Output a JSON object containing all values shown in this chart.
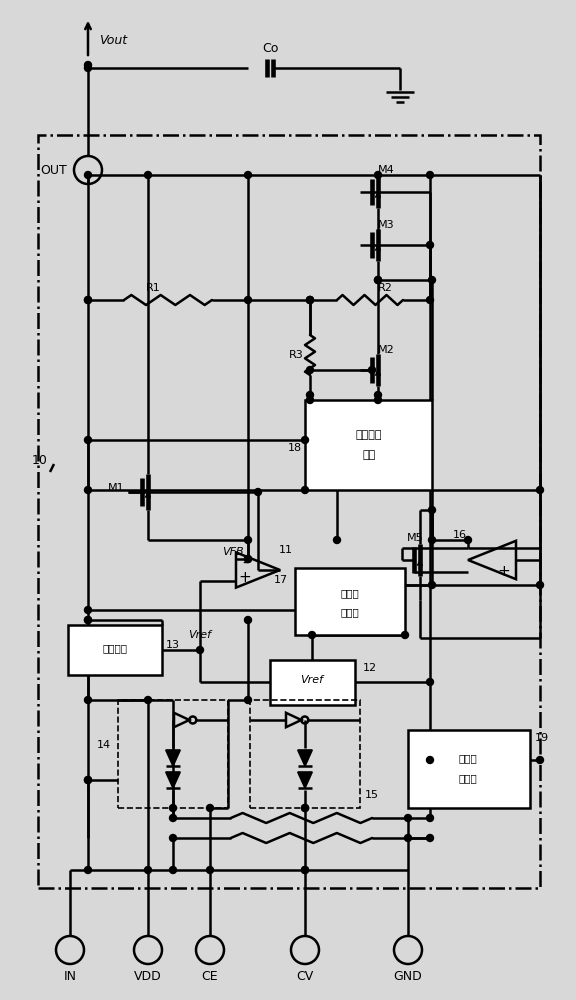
{
  "bg_color": "#d8d8d8",
  "line_color": "#000000",
  "lw": 1.8,
  "tlw": 1.2,
  "fig_width": 5.76,
  "fig_height": 10.0,
  "labels": {
    "OUT": "OUT",
    "IN": "IN",
    "VDD": "VDD",
    "CE": "CE",
    "CV": "CV",
    "GND": "GND",
    "Vout": "Vout",
    "Co": "Co",
    "M1": "M1",
    "M2": "M2",
    "M3": "M3",
    "M4": "M4",
    "M5": "M5",
    "R1": "R1",
    "R2": "R2",
    "R3": "R3",
    "VFB": "VFB",
    "Vref": "Vref",
    "n10": "10",
    "n11": "11",
    "n12": "12",
    "n13": "13",
    "n14": "14",
    "n15": "15",
    "n16": "16",
    "n17": "17",
    "n18": "18",
    "n19": "19",
    "blk18": "电流限制电路",
    "blk17": "过热关机电路",
    "blk13": "偏置电路",
    "blk12": "Vref",
    "blk19": "脉冲生成电路"
  }
}
